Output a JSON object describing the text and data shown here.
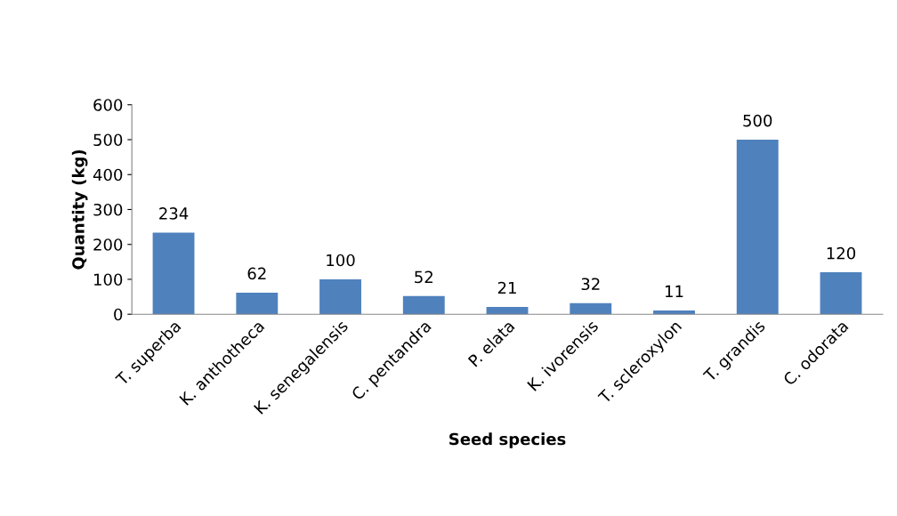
{
  "chart_data": {
    "type": "bar",
    "xlabel": "Seed species",
    "ylabel": "Quantity (kg)",
    "categories": [
      "T. superba",
      "K. anthotheca",
      "K. senegalensis",
      "C. pentandra",
      "P. elata",
      "K. ivorensis",
      "T. scleroxylon",
      "T. grandis",
      "C. odorata"
    ],
    "values": [
      234,
      62,
      100,
      52,
      21,
      32,
      11,
      500,
      120
    ],
    "color": "#4f81bd",
    "ylim": [
      0,
      600
    ],
    "yticks": [
      0,
      100,
      200,
      300,
      400,
      500,
      600
    ],
    "data_labels": true,
    "grid": false,
    "legend": false
  }
}
